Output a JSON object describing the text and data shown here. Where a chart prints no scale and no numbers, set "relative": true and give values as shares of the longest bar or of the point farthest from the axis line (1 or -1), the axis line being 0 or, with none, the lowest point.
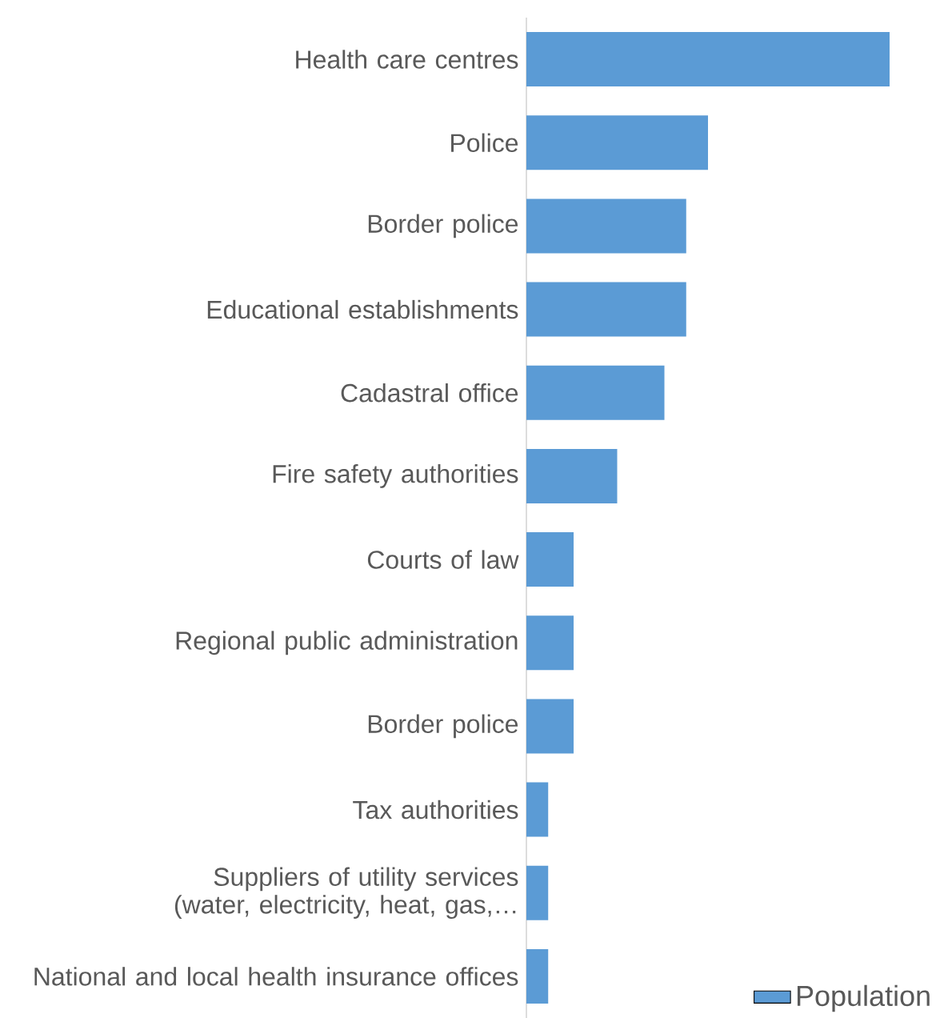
{
  "chart_data": {
    "type": "bar",
    "orientation": "horizontal",
    "relative": true,
    "categories": [
      "Health care centres",
      "Police",
      "Border police",
      "Educational establishments",
      "Cadastral office",
      "Fire safety authorities",
      "Courts of law",
      "Regional public administration",
      "Border police",
      "Tax authorities",
      "Suppliers of utility services (water, electricity, heat, gas,…",
      "National and local health insurance offices"
    ],
    "series": [
      {
        "name": "Population",
        "color": "#5b9bd5",
        "values": [
          1,
          0.5,
          0.44,
          0.44,
          0.38,
          0.25,
          0.13,
          0.13,
          0.13,
          0.06,
          0.06,
          0.06
        ]
      }
    ],
    "legend": "bottom right"
  }
}
